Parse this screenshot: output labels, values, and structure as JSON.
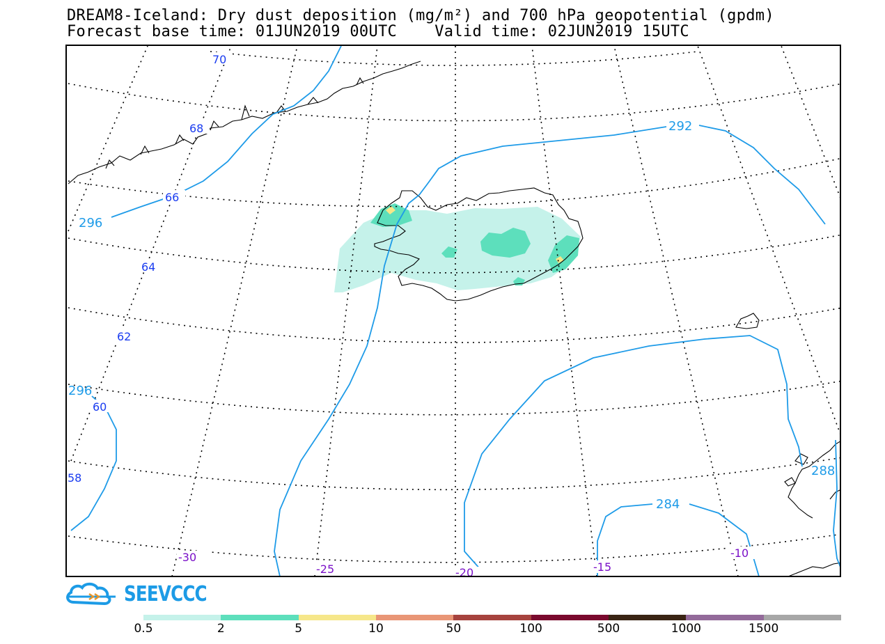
{
  "title": {
    "line1": "DREAM8-Iceland: Dry dust deposition (mg/m²) and 700 hPa geopotential (gpdm)",
    "line2": "Forecast base time: 01JUN2019 00UTC    Valid time: 02JUN2019 15UTC"
  },
  "map": {
    "lat_labels": [
      "70",
      "68",
      "66",
      "64",
      "62",
      "60",
      "58"
    ],
    "lon_labels": [
      "-30",
      "-25",
      "-20",
      "-15",
      "-10"
    ],
    "contour_labels": [
      "292",
      "296",
      "296",
      "284",
      "288"
    ],
    "colors": {
      "contour": "#1e9be8",
      "coast": "#000000",
      "lat_label": "#1a3cf0",
      "lon_label": "#7a10c8"
    }
  },
  "logo": {
    "text": "SEEVCCC",
    "icon": "cloud-logo-icon",
    "color": "#1c9be6"
  },
  "legend": {
    "colors": [
      "#c5f2ea",
      "#5ddfbc",
      "#f6e78a",
      "#e99676",
      "#a6433e",
      "#7a0a2e",
      "#3a2414",
      "#936a9a",
      "#a7a7a7"
    ],
    "labels": [
      "0.5",
      "2",
      "5",
      "10",
      "50",
      "100",
      "500",
      "1000",
      "1500"
    ]
  }
}
